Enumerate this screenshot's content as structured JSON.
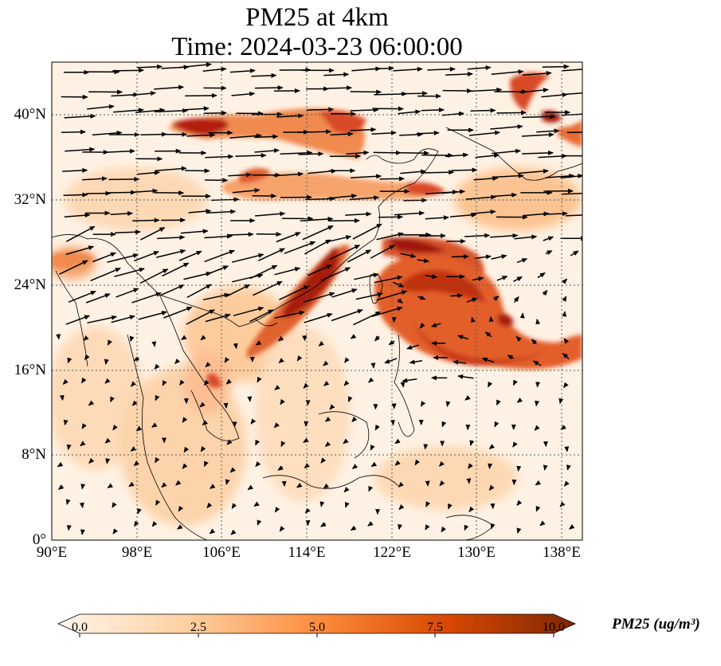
{
  "title_line1": "PM25 at 4km",
  "title_line2": "Time: 2024-03-23 06:00:00",
  "lat_labels": [
    "40°N",
    "32°N",
    "24°N",
    "16°N",
    "8°N",
    "0°"
  ],
  "lon_labels": [
    "90°E",
    "98°E",
    "106°E",
    "114°E",
    "122°E",
    "130°E",
    "138°E"
  ],
  "map_extent": {
    "lon": [
      90,
      140
    ],
    "lat": [
      0,
      45
    ]
  },
  "colorbar": {
    "ticks": [
      "0.0",
      "2.5",
      "5.0",
      "7.5",
      "10.0"
    ],
    "range": [
      0,
      10
    ],
    "label": "PM25 (ug/m³)",
    "colormap": [
      "#fff5eb",
      "#fdd0a2",
      "#fd8d3c",
      "#d94801",
      "#7f2704"
    ]
  },
  "colors": {
    "land_outline": "#000000",
    "grid": "#555555",
    "arrow": "#000000"
  }
}
